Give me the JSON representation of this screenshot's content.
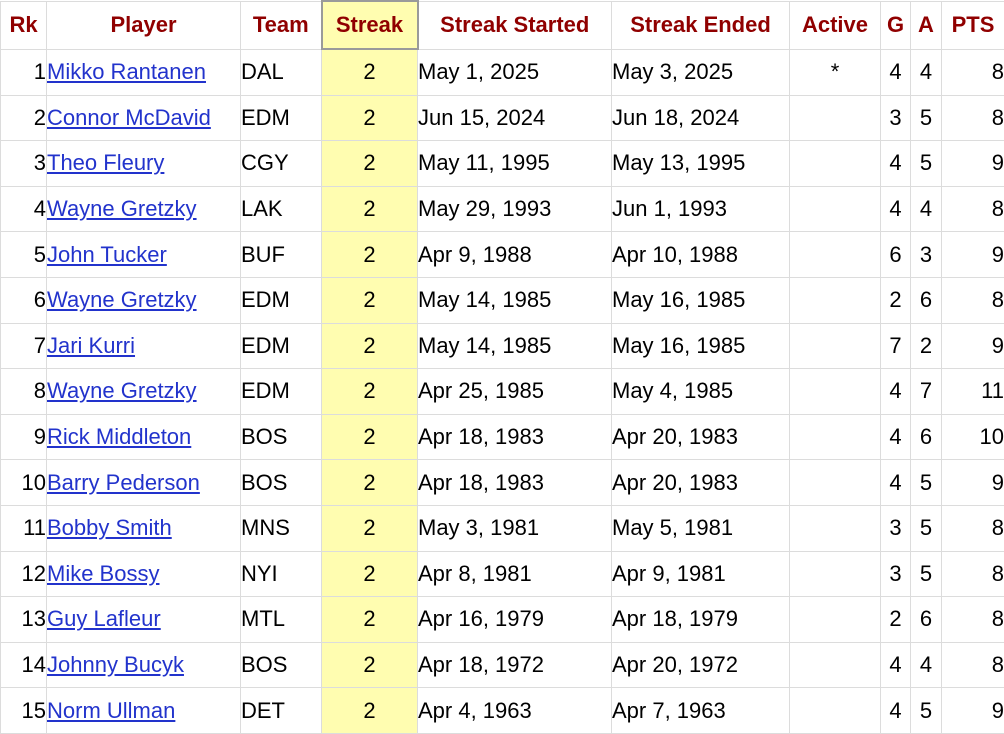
{
  "headers": {
    "rk": "Rk",
    "player": "Player",
    "team": "Team",
    "streak": "Streak",
    "streak_started": "Streak Started",
    "streak_ended": "Streak Ended",
    "active": "Active",
    "g": "G",
    "a": "A",
    "pts": "PTS"
  },
  "sorted_column": "streak",
  "colors": {
    "header_text": "#900000",
    "link": "#2233cc",
    "sorted_column_bg": "#fffdb0"
  },
  "rows": [
    {
      "rk": "1",
      "player": "Mikko Rantanen",
      "team": "DAL",
      "streak": "2",
      "started": "May 1, 2025",
      "ended": "May 3, 2025",
      "active": "*",
      "g": "4",
      "a": "4",
      "pts": "8"
    },
    {
      "rk": "2",
      "player": "Connor McDavid",
      "team": "EDM",
      "streak": "2",
      "started": "Jun 15, 2024",
      "ended": "Jun 18, 2024",
      "active": "",
      "g": "3",
      "a": "5",
      "pts": "8"
    },
    {
      "rk": "3",
      "player": "Theo Fleury",
      "team": "CGY",
      "streak": "2",
      "started": "May 11, 1995",
      "ended": "May 13, 1995",
      "active": "",
      "g": "4",
      "a": "5",
      "pts": "9"
    },
    {
      "rk": "4",
      "player": "Wayne Gretzky",
      "team": "LAK",
      "streak": "2",
      "started": "May 29, 1993",
      "ended": "Jun 1, 1993",
      "active": "",
      "g": "4",
      "a": "4",
      "pts": "8"
    },
    {
      "rk": "5",
      "player": "John Tucker",
      "team": "BUF",
      "streak": "2",
      "started": "Apr 9, 1988",
      "ended": "Apr 10, 1988",
      "active": "",
      "g": "6",
      "a": "3",
      "pts": "9"
    },
    {
      "rk": "6",
      "player": "Wayne Gretzky",
      "team": "EDM",
      "streak": "2",
      "started": "May 14, 1985",
      "ended": "May 16, 1985",
      "active": "",
      "g": "2",
      "a": "6",
      "pts": "8"
    },
    {
      "rk": "7",
      "player": "Jari Kurri",
      "team": "EDM",
      "streak": "2",
      "started": "May 14, 1985",
      "ended": "May 16, 1985",
      "active": "",
      "g": "7",
      "a": "2",
      "pts": "9"
    },
    {
      "rk": "8",
      "player": "Wayne Gretzky",
      "team": "EDM",
      "streak": "2",
      "started": "Apr 25, 1985",
      "ended": "May 4, 1985",
      "active": "",
      "g": "4",
      "a": "7",
      "pts": "11"
    },
    {
      "rk": "9",
      "player": "Rick Middleton",
      "team": "BOS",
      "streak": "2",
      "started": "Apr 18, 1983",
      "ended": "Apr 20, 1983",
      "active": "",
      "g": "4",
      "a": "6",
      "pts": "10"
    },
    {
      "rk": "10",
      "player": "Barry Pederson",
      "team": "BOS",
      "streak": "2",
      "started": "Apr 18, 1983",
      "ended": "Apr 20, 1983",
      "active": "",
      "g": "4",
      "a": "5",
      "pts": "9"
    },
    {
      "rk": "11",
      "player": "Bobby Smith",
      "team": "MNS",
      "streak": "2",
      "started": "May 3, 1981",
      "ended": "May 5, 1981",
      "active": "",
      "g": "3",
      "a": "5",
      "pts": "8"
    },
    {
      "rk": "12",
      "player": "Mike Bossy",
      "team": "NYI",
      "streak": "2",
      "started": "Apr 8, 1981",
      "ended": "Apr 9, 1981",
      "active": "",
      "g": "3",
      "a": "5",
      "pts": "8"
    },
    {
      "rk": "13",
      "player": "Guy Lafleur",
      "team": "MTL",
      "streak": "2",
      "started": "Apr 16, 1979",
      "ended": "Apr 18, 1979",
      "active": "",
      "g": "2",
      "a": "6",
      "pts": "8"
    },
    {
      "rk": "14",
      "player": "Johnny Bucyk",
      "team": "BOS",
      "streak": "2",
      "started": "Apr 18, 1972",
      "ended": "Apr 20, 1972",
      "active": "",
      "g": "4",
      "a": "4",
      "pts": "8"
    },
    {
      "rk": "15",
      "player": "Norm Ullman",
      "team": "DET",
      "streak": "2",
      "started": "Apr 4, 1963",
      "ended": "Apr 7, 1963",
      "active": "",
      "g": "4",
      "a": "5",
      "pts": "9"
    }
  ]
}
